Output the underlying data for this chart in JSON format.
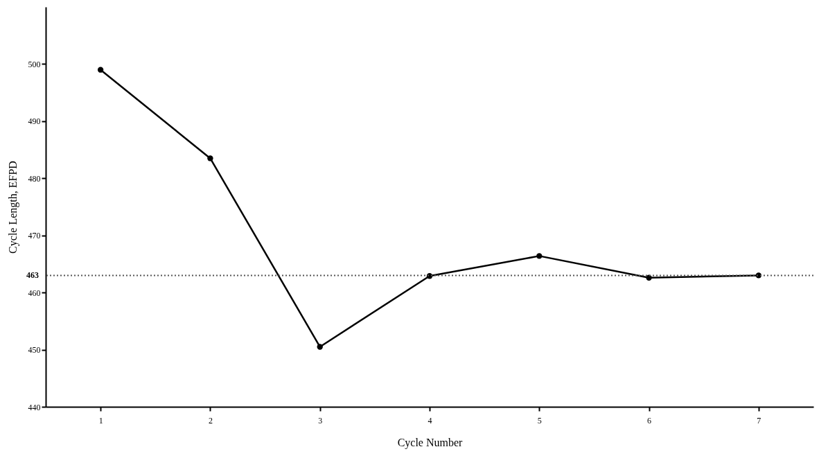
{
  "chart_data": {
    "type": "line",
    "xlabel": "Cycle Number",
    "ylabel": "Cycle Length, EFPD",
    "x": [
      1,
      2,
      3,
      4,
      5,
      6,
      7
    ],
    "series": [
      {
        "color": "#000000",
        "values": [
          499,
          483.5,
          450.5,
          462.9,
          466.4,
          462.6,
          463
        ]
      }
    ],
    "xlim": [
      0.5,
      7.5
    ],
    "xticks": [
      1,
      2,
      3,
      4,
      5,
      6,
      7
    ],
    "ylim": [
      440,
      510
    ],
    "yticks": [
      440,
      450,
      460,
      470,
      480,
      490,
      500
    ],
    "ref_lines": [
      {
        "axis": "y",
        "value": 463,
        "label": "463",
        "color": "#555555",
        "line_style": "dotted"
      }
    ],
    "marker": "circle",
    "line_style": "solid"
  }
}
